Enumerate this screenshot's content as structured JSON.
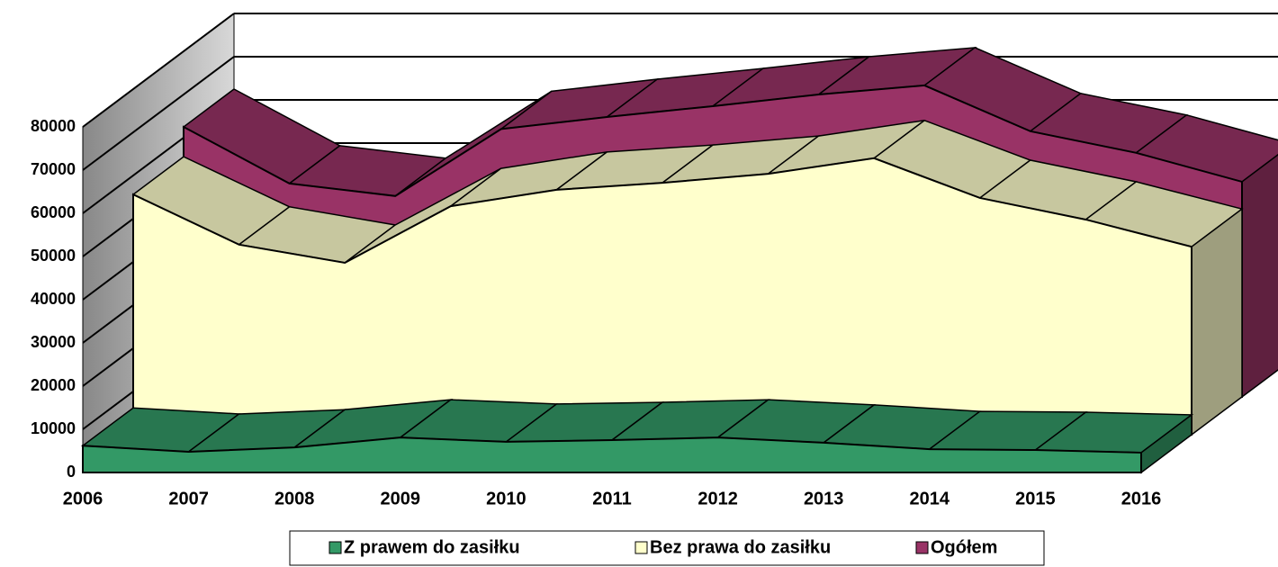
{
  "chart_data": {
    "type": "area3d",
    "categories": [
      "2006",
      "2007",
      "2008",
      "2009",
      "2010",
      "2011",
      "2012",
      "2013",
      "2014",
      "2015",
      "2016"
    ],
    "series": [
      {
        "name": "Z prawem do zasiłku",
        "color": "#339966",
        "values": [
          6200,
          4800,
          5800,
          8100,
          7100,
          7500,
          8100,
          6900,
          5400,
          5200,
          4600
        ]
      },
      {
        "name": "Bez prawa do zasiłku",
        "color": "#ffffcc",
        "values": [
          55600,
          44000,
          39800,
          52900,
          56700,
          58300,
          60400,
          64000,
          54800,
          49800,
          43500
        ]
      },
      {
        "name": "Ogółem",
        "color": "#993366",
        "values": [
          62500,
          49400,
          46500,
          62000,
          64800,
          67300,
          70000,
          72100,
          61500,
          56500,
          49800
        ]
      }
    ],
    "ylim": [
      0,
      80000
    ],
    "yticks": [
      0,
      10000,
      20000,
      30000,
      40000,
      50000,
      60000,
      70000,
      80000
    ],
    "grid": true
  }
}
